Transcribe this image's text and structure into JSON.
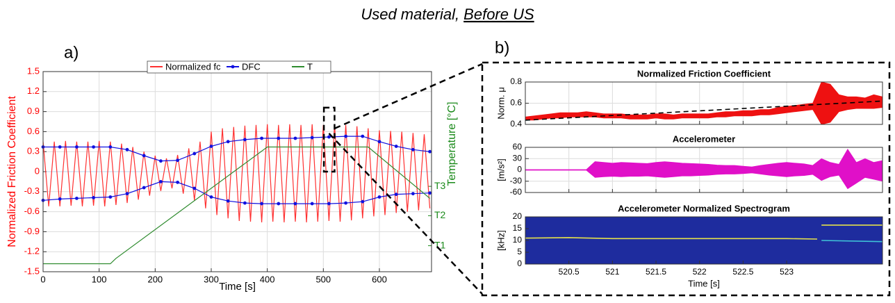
{
  "title": {
    "text": "Used material,",
    "underlined": "Before US"
  },
  "chart_data": [
    {
      "panel": "a)",
      "type": "line",
      "xlabel": "Time [s]",
      "ylabel": "Normalized Friction Coefficient",
      "y2label": "Temperature [°C]",
      "ycolor": "#ff0000",
      "y2color": "#1a8a1a",
      "grid": true,
      "legend": "top",
      "xlim": [
        0,
        693
      ],
      "xticks": [
        0,
        100,
        200,
        300,
        400,
        500,
        600
      ],
      "ylim": [
        -1.5,
        1.5
      ],
      "yticks": [
        1.5,
        1.2,
        0.9,
        0.6,
        0.3,
        0,
        -0.3,
        -0.6,
        -0.9,
        -1.2,
        -1.5
      ],
      "y2lim": [
        -1.5,
        1.5
      ],
      "y2ticks": [
        {
          "value": -1.11,
          "label": "T1"
        },
        {
          "value": -0.66,
          "label": "T2"
        },
        {
          "value": -0.22,
          "label": "T3"
        }
      ],
      "zoom_box": {
        "x": [
          501,
          520
        ],
        "y": [
          0,
          0.96
        ]
      },
      "series": [
        {
          "name": "Normalized fc",
          "color": "#ff3030",
          "x": [
            0,
            10,
            20,
            30,
            40,
            50,
            60,
            70,
            80,
            90,
            100,
            110,
            120,
            130,
            140,
            150,
            160,
            170,
            180,
            190,
            200,
            210,
            220,
            230,
            240,
            250,
            260,
            270,
            280,
            290,
            300,
            310,
            320,
            330,
            340,
            350,
            360,
            370,
            380,
            390,
            400,
            410,
            420,
            430,
            440,
            450,
            460,
            470,
            480,
            490,
            500,
            510,
            520,
            530,
            540,
            550,
            560,
            570,
            580,
            590,
            600,
            610,
            620,
            630,
            640,
            650,
            660,
            670,
            680,
            690
          ],
          "values": [
            0.45,
            -0.52,
            0.45,
            -0.52,
            0.46,
            -0.51,
            0.45,
            -0.52,
            0.45,
            -0.51,
            0.46,
            -0.52,
            0.45,
            -0.5,
            0.42,
            -0.47,
            0.37,
            -0.42,
            0.3,
            -0.36,
            0.24,
            -0.29,
            0.2,
            -0.25,
            0.25,
            -0.33,
            0.35,
            -0.43,
            0.45,
            -0.55,
            0.6,
            -0.65,
            0.65,
            -0.7,
            0.67,
            -0.74,
            0.69,
            -0.75,
            0.7,
            -0.76,
            0.71,
            -0.75,
            0.7,
            -0.76,
            0.71,
            -0.75,
            0.7,
            -0.76,
            0.71,
            -0.75,
            0.7,
            -0.74,
            0.71,
            -0.75,
            0.7,
            -0.73,
            0.68,
            -0.7,
            0.65,
            -0.67,
            0.62,
            -0.65,
            0.61,
            -0.62,
            0.6,
            -0.6,
            0.58,
            -0.58,
            0.56,
            -0.55
          ]
        },
        {
          "name": "DFC",
          "color": "#1010e0",
          "markers": true,
          "x": [
            0,
            30,
            60,
            90,
            120,
            150,
            180,
            210,
            240,
            270,
            300,
            330,
            360,
            390,
            420,
            450,
            480,
            510,
            540,
            570,
            600,
            630,
            660,
            690,
            null,
            0,
            30,
            60,
            90,
            120,
            150,
            180,
            210,
            240,
            270,
            300,
            330,
            360,
            390,
            420,
            450,
            480,
            510,
            540,
            570,
            600,
            630,
            660,
            690
          ],
          "values": [
            0.37,
            0.37,
            0.37,
            0.37,
            0.37,
            0.33,
            0.24,
            0.16,
            0.17,
            0.27,
            0.38,
            0.45,
            0.48,
            0.5,
            0.5,
            0.5,
            0.51,
            0.52,
            0.53,
            0.53,
            0.45,
            0.38,
            0.33,
            0.3,
            null,
            -0.43,
            -0.41,
            -0.4,
            -0.39,
            -0.38,
            -0.33,
            -0.24,
            -0.15,
            -0.16,
            -0.25,
            -0.38,
            -0.44,
            -0.47,
            -0.48,
            -0.48,
            -0.48,
            -0.48,
            -0.48,
            -0.47,
            -0.45,
            -0.38,
            -0.34,
            -0.33,
            -0.32
          ]
        },
        {
          "name": "T",
          "color": "#2e8b2e",
          "axis": "y2",
          "x": [
            0,
            120,
            130,
            400,
            580,
            690
          ],
          "values": [
            -1.38,
            -1.38,
            -1.3,
            0.37,
            0.37,
            -0.4
          ]
        }
      ]
    },
    {
      "panel": "b)",
      "type": "band",
      "title": "Normalized Friction Coefficient",
      "ylabel": "Norm. μ",
      "grid": true,
      "show_xticklabels": false,
      "xlim": [
        520,
        524.1
      ],
      "xticks": [
        520.5,
        521,
        521.5,
        522,
        522.5,
        523
      ],
      "ylim": [
        0.4,
        0.8
      ],
      "yticks": [
        0.4,
        0.6,
        0.8
      ],
      "series": [
        {
          "type": "band",
          "color": "#ee1111",
          "x": [
            520,
            520.1,
            520.2,
            520.3,
            520.4,
            520.5,
            520.6,
            520.7,
            520.8,
            520.9,
            521,
            521.1,
            521.2,
            521.3,
            521.4,
            521.5,
            521.6,
            521.7,
            521.8,
            521.9,
            522,
            522.1,
            522.2,
            522.3,
            522.4,
            522.5,
            522.6,
            522.7,
            522.8,
            522.9,
            523,
            523.1,
            523.2,
            523.3,
            523.4,
            523.5,
            523.6,
            523.7,
            523.8,
            523.9,
            524,
            524.1
          ],
          "upper": [
            0.47,
            0.48,
            0.49,
            0.5,
            0.51,
            0.51,
            0.51,
            0.52,
            0.51,
            0.5,
            0.5,
            0.5,
            0.49,
            0.49,
            0.49,
            0.5,
            0.5,
            0.49,
            0.5,
            0.5,
            0.5,
            0.5,
            0.51,
            0.52,
            0.52,
            0.53,
            0.53,
            0.54,
            0.54,
            0.56,
            0.57,
            0.58,
            0.59,
            0.6,
            0.8,
            0.78,
            0.68,
            0.66,
            0.66,
            0.65,
            0.68,
            0.66
          ],
          "lower": [
            0.44,
            0.44,
            0.45,
            0.46,
            0.46,
            0.47,
            0.47,
            0.47,
            0.47,
            0.46,
            0.46,
            0.46,
            0.45,
            0.45,
            0.45,
            0.46,
            0.45,
            0.45,
            0.46,
            0.46,
            0.46,
            0.46,
            0.47,
            0.47,
            0.48,
            0.48,
            0.48,
            0.49,
            0.49,
            0.5,
            0.51,
            0.52,
            0.53,
            0.54,
            0.4,
            0.42,
            0.52,
            0.54,
            0.55,
            0.55,
            0.55,
            0.56
          ]
        },
        {
          "type": "line",
          "dash": true,
          "color": "#000000",
          "x": [
            520,
            524.1
          ],
          "values": [
            0.44,
            0.62
          ]
        }
      ]
    },
    {
      "type": "band",
      "title": "Accelerometer",
      "ylabel": "[m/s²]",
      "grid": true,
      "show_xticklabels": false,
      "xlim": [
        520,
        524.1
      ],
      "xticks": [
        520.5,
        521,
        521.5,
        522,
        522.5,
        523
      ],
      "ylim": [
        -60,
        60
      ],
      "yticks": [
        -60,
        -30,
        0,
        30,
        60
      ],
      "series": [
        {
          "type": "band",
          "color": "#e010c8",
          "x": [
            520,
            520.1,
            520.2,
            520.3,
            520.4,
            520.5,
            520.6,
            520.7,
            520.8,
            520.9,
            521,
            521.1,
            521.2,
            521.3,
            521.4,
            521.5,
            521.6,
            521.7,
            521.8,
            521.9,
            522,
            522.1,
            522.2,
            522.3,
            522.4,
            522.5,
            522.6,
            522.7,
            522.8,
            522.9,
            523,
            523.1,
            523.2,
            523.3,
            523.4,
            523.5,
            523.6,
            523.7,
            523.8,
            523.9,
            524,
            524.1
          ],
          "upper": [
            1,
            1,
            1,
            1,
            1,
            1,
            1,
            1,
            22,
            20,
            18,
            20,
            19,
            18,
            17,
            20,
            22,
            20,
            18,
            17,
            16,
            15,
            13,
            12,
            12,
            10,
            8,
            12,
            15,
            18,
            20,
            18,
            16,
            12,
            30,
            20,
            15,
            55,
            20,
            30,
            20,
            25
          ],
          "lower": [
            -1,
            -1,
            -1,
            -1,
            -1,
            -1,
            -1,
            -1,
            -20,
            -18,
            -17,
            -18,
            -17,
            -17,
            -16,
            -18,
            -20,
            -18,
            -16,
            -16,
            -15,
            -14,
            -12,
            -11,
            -11,
            -10,
            -8,
            -11,
            -14,
            -16,
            -18,
            -16,
            -15,
            -12,
            -28,
            -18,
            -14,
            -50,
            -35,
            -20,
            -25,
            -30
          ]
        }
      ]
    },
    {
      "type": "spectrogram",
      "title": "Accelerometer Normalized Spectrogram",
      "ylabel": "[kHz]",
      "xlabel": "Time [s]",
      "grid": false,
      "background": "#1e2c9e",
      "xlim": [
        520,
        524.1
      ],
      "xticks": [
        520.5,
        521,
        521.5,
        522,
        522.5,
        523
      ],
      "ylim": [
        0,
        20
      ],
      "yticks": [
        0,
        5,
        10,
        15,
        20
      ],
      "series": [
        {
          "type": "line",
          "color": "#e6e24a",
          "x": [
            520,
            520.5,
            521,
            522,
            523,
            523.35
          ],
          "values": [
            11,
            11.2,
            10.8,
            10.8,
            10.8,
            10.6
          ]
        },
        {
          "type": "line",
          "color": "#e6e24a",
          "x": [
            523.4,
            524.1
          ],
          "values": [
            16.5,
            16.5
          ]
        },
        {
          "type": "line",
          "color": "#3fc4d8",
          "x": [
            523.4,
            524.1
          ],
          "values": [
            10,
            9.5
          ]
        }
      ]
    }
  ]
}
